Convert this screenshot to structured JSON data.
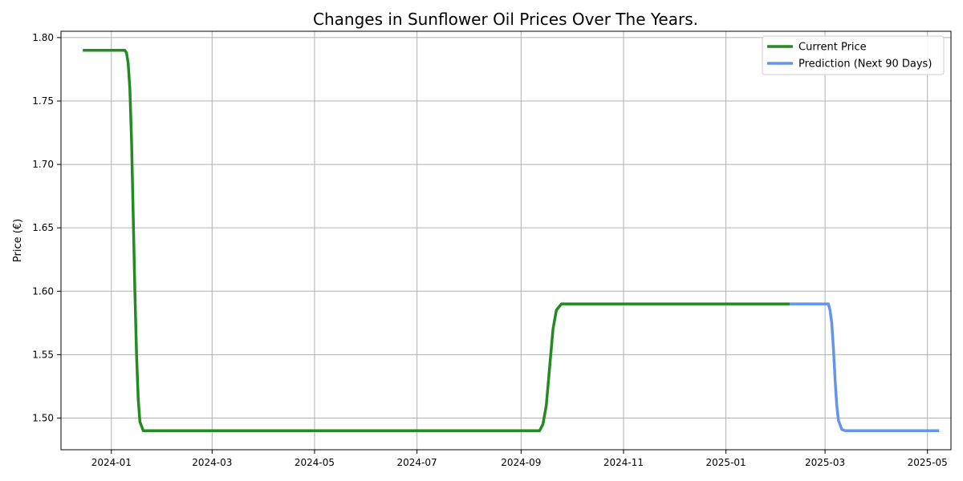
{
  "chart_data": {
    "type": "line",
    "title": "Changes in Sunflower Oil Prices Over The Years.",
    "xlabel": "",
    "ylabel": "Price (€)",
    "xlim": [
      "2023-12-02",
      "2025-05-15"
    ],
    "ylim": [
      1.475,
      1.805
    ],
    "x_ticks": [
      "2024-01",
      "2024-03",
      "2024-05",
      "2024-07",
      "2024-09",
      "2024-11",
      "2025-01",
      "2025-03",
      "2025-05"
    ],
    "y_ticks": [
      1.5,
      1.55,
      1.6,
      1.65,
      1.7,
      1.75,
      1.8
    ],
    "y_tick_labels": [
      "1.50",
      "1.55",
      "1.60",
      "1.65",
      "1.70",
      "1.75",
      "1.80"
    ],
    "grid": true,
    "legend_position": "top-right",
    "series": [
      {
        "name": "Current Price",
        "color": "#228B22",
        "points": [
          [
            "2023-12-15",
            1.79
          ],
          [
            "2024-01-09",
            1.79
          ],
          [
            "2024-01-10",
            1.788
          ],
          [
            "2024-01-11",
            1.78
          ],
          [
            "2024-01-12",
            1.76
          ],
          [
            "2024-01-13",
            1.72
          ],
          [
            "2024-01-14",
            1.66
          ],
          [
            "2024-01-15",
            1.6
          ],
          [
            "2024-01-16",
            1.55
          ],
          [
            "2024-01-17",
            1.515
          ],
          [
            "2024-01-18",
            1.497
          ],
          [
            "2024-01-20",
            1.49
          ],
          [
            "2024-09-12",
            1.49
          ],
          [
            "2024-09-14",
            1.495
          ],
          [
            "2024-09-16",
            1.51
          ],
          [
            "2024-09-18",
            1.54
          ],
          [
            "2024-09-20",
            1.57
          ],
          [
            "2024-09-22",
            1.585
          ],
          [
            "2024-09-25",
            1.59
          ],
          [
            "2025-02-08",
            1.59
          ]
        ]
      },
      {
        "name": "Prediction (Next 90 Days)",
        "color": "#6495ED",
        "points": [
          [
            "2025-02-08",
            1.59
          ],
          [
            "2025-03-03",
            1.59
          ],
          [
            "2025-03-04",
            1.585
          ],
          [
            "2025-03-05",
            1.575
          ],
          [
            "2025-03-06",
            1.555
          ],
          [
            "2025-03-07",
            1.53
          ],
          [
            "2025-03-08",
            1.51
          ],
          [
            "2025-03-09",
            1.498
          ],
          [
            "2025-03-11",
            1.491
          ],
          [
            "2025-03-13",
            1.49
          ],
          [
            "2025-05-08",
            1.49
          ]
        ]
      }
    ]
  }
}
